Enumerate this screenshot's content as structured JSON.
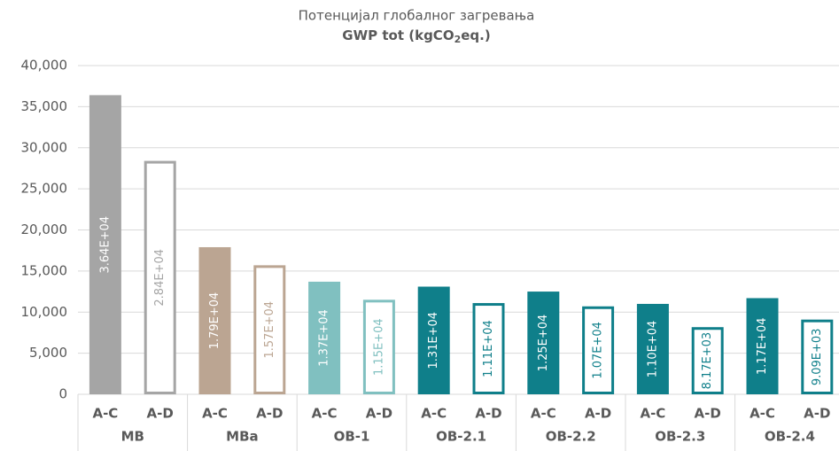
{
  "chart_data": {
    "type": "bar",
    "title": "Потенцијал глобалног загревања",
    "subtitle": [
      "GWP tot  (kgCO",
      "2",
      "eq.)"
    ],
    "categories": [
      "A-C",
      "A-D",
      "A-C",
      "A-D",
      "A-C",
      "A-D",
      "A-C",
      "A-D",
      "A-C",
      "A-D",
      "A-C",
      "A-D",
      "A-C",
      "A-D"
    ],
    "groups": [
      "MB",
      "MBa",
      "OB-1",
      "OB-2.1",
      "OB-2.2",
      "OB-2.3",
      "OB-2.4"
    ],
    "values": [
      36400,
      28400,
      17900,
      15700,
      13700,
      11500,
      13100,
      11100,
      12500,
      10700,
      11000,
      8170,
      11700,
      9090
    ],
    "value_labels": [
      "3.64E+04",
      "2.84E+04",
      "1.79E+04",
      "1.57E+04",
      "1.37E+04",
      "1.15E+04",
      "1.31E+04",
      "1.11E+04",
      "1.25E+04",
      "1.07E+04",
      "1.10E+04",
      "8.17E+03",
      "1.17E+04",
      "9.09E+03"
    ],
    "colors": [
      "#a5a5a5",
      "#a5a5a5",
      "#bba592",
      "#bba592",
      "#80c0c0",
      "#80c0c0",
      "#0f7f8a",
      "#0f7f8a",
      "#0f7f8a",
      "#0f7f8a",
      "#0f7f8a",
      "#0f7f8a",
      "#0f7f8a",
      "#0f7f8a"
    ],
    "outlined": [
      false,
      true,
      false,
      true,
      false,
      true,
      false,
      true,
      false,
      true,
      false,
      true,
      false,
      true
    ],
    "ylim": [
      0,
      40000
    ],
    "yticks": [
      0,
      {
        "value": 5000,
        "label": "5,000"
      },
      {
        "value": 10000,
        "label": "10,000"
      },
      {
        "value": 15000,
        "label": "15,000"
      },
      {
        "value": 20000,
        "label": "20,000"
      },
      {
        "value": 25000,
        "label": "25,000"
      },
      {
        "value": 30000,
        "label": "30,000"
      },
      {
        "value": 35000,
        "label": "35,000"
      },
      {
        "value": 40000,
        "label": "40,000"
      }
    ],
    "grid": true
  }
}
